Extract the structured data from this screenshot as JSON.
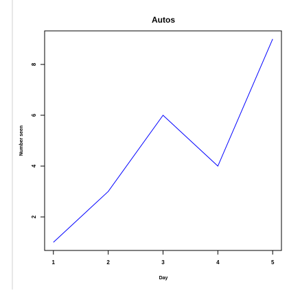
{
  "chart_data": {
    "type": "line",
    "title": "Autos",
    "xlabel": "Day",
    "ylabel": "Number seen",
    "x": [
      1,
      2,
      3,
      4,
      5
    ],
    "xlim": [
      0.84,
      5.16
    ],
    "ylim": [
      0.68,
      9.32
    ],
    "x_ticks": [
      1,
      2,
      3,
      4,
      5
    ],
    "y_ticks": [
      2,
      4,
      6,
      8
    ],
    "grid": false,
    "series": [
      {
        "values": [
          1,
          3,
          6,
          4,
          9
        ],
        "color": "#0000ff"
      }
    ]
  }
}
